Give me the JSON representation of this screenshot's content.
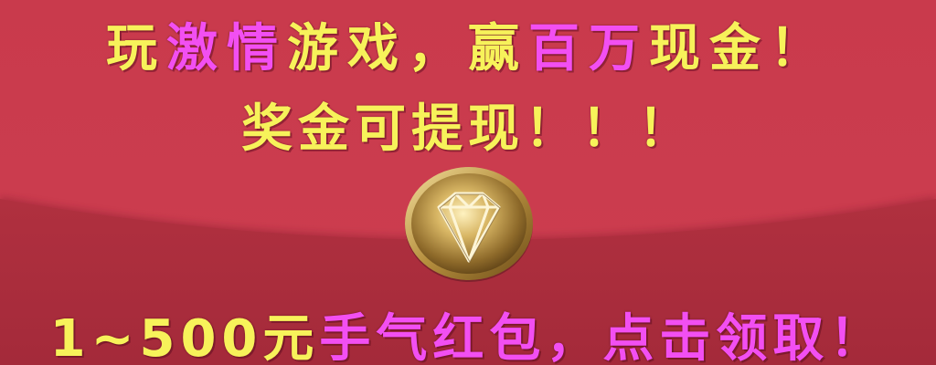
{
  "banner": {
    "line1": {
      "part1": "玩",
      "part2": "激情",
      "part3": "游戏，",
      "part4": "赢",
      "part5": "百万",
      "part6": "现金！"
    },
    "line2": "奖金可提现！！！",
    "line3": {
      "amount": "1~500元",
      "part2": "手气红包，点击领取！"
    },
    "coin_icon": "diamond-coin-icon"
  },
  "colors": {
    "background_top": "#c93a4c",
    "background_bottom": "#a92a3e",
    "text_yellow": "#f7f25a",
    "text_pink": "#f24ff2",
    "coin_gold": "#c8a24a"
  }
}
